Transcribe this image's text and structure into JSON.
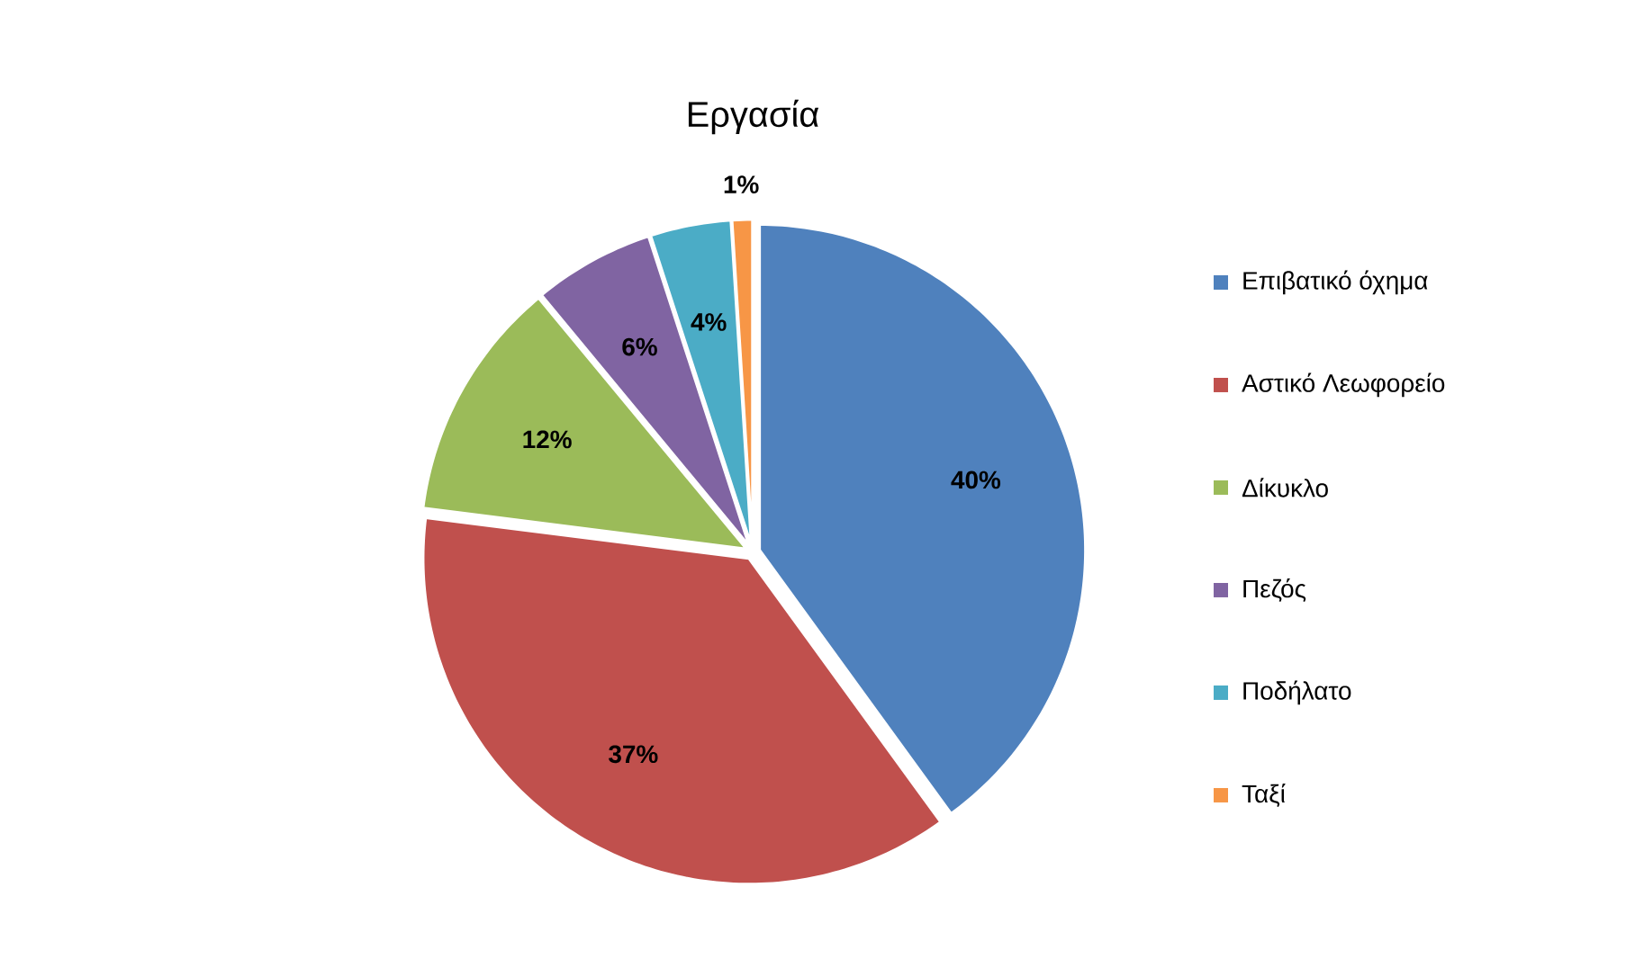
{
  "chart_data": {
    "type": "pie",
    "title": "Εργασία",
    "categories": [
      "Επιβατικό όχημα",
      "Αστικό Λεωφορείο",
      "Δίκυκλο",
      "Πεζός",
      "Ποδήλατο",
      "Ταξί"
    ],
    "values": [
      40,
      37,
      12,
      6,
      4,
      1
    ],
    "value_labels": [
      "40%",
      "37%",
      "12%",
      "6%",
      "4%",
      "1%"
    ],
    "colors": [
      "#4f81bd",
      "#c0504d",
      "#9bbb59",
      "#8064a2",
      "#4bacc6",
      "#f79646"
    ],
    "legend": "right"
  }
}
